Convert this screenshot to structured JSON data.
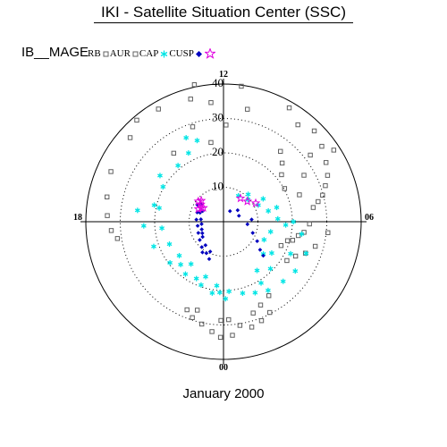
{
  "header": {
    "title": "IKI - Satellite Situation Center (SSC)",
    "plot_label": "IB__MAGE"
  },
  "footer": {
    "month": "January 2000"
  },
  "chart_data": {
    "type": "scatter",
    "projection": "polar-mlt",
    "title": "IKI - Satellite Situation Center (SSC)",
    "subtitle": "January 2000",
    "radial_axis": {
      "range": [
        0,
        40
      ],
      "tick_labels": [
        "10",
        "20",
        "30",
        "40"
      ],
      "tick_values": [
        10,
        20,
        30,
        40
      ],
      "grid": "dotted"
    },
    "angular_axis": {
      "tick_labels": [
        "00",
        "06",
        "12",
        "18"
      ],
      "tick_values": [
        0,
        6,
        12,
        18
      ]
    },
    "legend": {
      "placement": "top-left",
      "entries": [
        {
          "label": "RB",
          "marker": "open-square",
          "color": "#606060"
        },
        {
          "label": "AUR",
          "marker": "open-square",
          "color": "#606060"
        },
        {
          "label": "CAP",
          "marker": "asterisk",
          "color": "#00e5e5"
        },
        {
          "label": "CUSP",
          "marker": "filled-diamond",
          "color": "#0000c0"
        },
        {
          "label": "",
          "marker": "open-star",
          "color": "#e000e0"
        }
      ]
    },
    "series": [
      {
        "name": "RB",
        "marker": "open-square",
        "color": "#606060",
        "points": [
          [
            40.7,
            12.8
          ],
          [
            39.7,
            11.5
          ],
          [
            38.2,
            10.0
          ],
          [
            38.8,
            14.7
          ],
          [
            36.5,
            15.2
          ],
          [
            35.8,
            16.4
          ],
          [
            34.6,
            17.2
          ],
          [
            33.8,
            17.8
          ],
          [
            37.3,
            9.0
          ],
          [
            36.0,
            8.5
          ],
          [
            34.4,
            8.0
          ],
          [
            33.1,
            7.6
          ],
          [
            31.4,
            7.3
          ],
          [
            29.8,
            7.0
          ],
          [
            28.1,
            6.8
          ],
          [
            26.4,
            6.6
          ],
          [
            25.0,
            5.9
          ],
          [
            23.6,
            5.5
          ],
          [
            22.1,
            5.3
          ],
          [
            20.8,
            5.0
          ],
          [
            19.4,
            4.9
          ],
          [
            18.1,
            4.5
          ],
          [
            26.3,
            9.4
          ],
          [
            24.1,
            9.0
          ],
          [
            21.7,
            8.6
          ],
          [
            20.2,
            7.9
          ],
          [
            38.2,
            8.2
          ],
          [
            30.5,
            5.6
          ],
          [
            27.6,
            5.0
          ],
          [
            25.5,
            4.6
          ],
          [
            23.2,
            4.3
          ],
          [
            21.6,
            3.9
          ],
          [
            37.8,
            14.0
          ],
          [
            36.9,
            13.0
          ],
          [
            29.0,
            13.2
          ],
          [
            28.1,
            11.9
          ],
          [
            24.6,
            14.4
          ],
          [
            23.3,
            12.6
          ],
          [
            32.7,
            18.3
          ],
          [
            31.2,
            18.6
          ],
          [
            33.1,
            0.3
          ],
          [
            31.7,
            1.0
          ],
          [
            30.8,
            1.4
          ],
          [
            29.6,
            1.8
          ],
          [
            32.1,
            23.6
          ],
          [
            30.4,
            23.2
          ],
          [
            29.3,
            22.8
          ],
          [
            27.7,
            22.5
          ],
          [
            33.6,
            23.9
          ],
          [
            30.5,
            0.6
          ],
          [
            28.7,
            23.9
          ],
          [
            27.9,
            1.2
          ],
          [
            26.5,
            1.6
          ],
          [
            25.2,
            2.1
          ],
          [
            26.8,
            22.9
          ],
          [
            28.5,
            0.2
          ],
          [
            34.8,
            12.4
          ],
          [
            33.4,
            11.2
          ],
          [
            35.5,
            9.5
          ],
          [
            31.8,
            8.5
          ],
          [
            27.0,
            8.0
          ],
          [
            23.4,
            7.3
          ]
        ]
      },
      {
        "name": "CAP",
        "marker": "asterisk",
        "color": "#00e5e5",
        "points": [
          [
            26.7,
            13.6
          ],
          [
            24.8,
            13.2
          ],
          [
            22.4,
            13.8
          ],
          [
            21.0,
            14.6
          ],
          [
            20.3,
            16.0
          ],
          [
            19.1,
            17.2
          ],
          [
            18.0,
            18.4
          ],
          [
            17.0,
            19.5
          ],
          [
            16.2,
            20.5
          ],
          [
            15.5,
            21.5
          ],
          [
            16.8,
            22.8
          ],
          [
            18.7,
            23.6
          ],
          [
            20.3,
            0.3
          ],
          [
            21.5,
            1.0
          ],
          [
            22.6,
            1.6
          ],
          [
            23.8,
            2.2
          ],
          [
            24.5,
            3.0
          ],
          [
            25.3,
            3.7
          ],
          [
            25.7,
            4.6
          ],
          [
            25.2,
            17.5
          ],
          [
            23.2,
            18.2
          ],
          [
            21.5,
            19.3
          ],
          [
            19.6,
            20.5
          ],
          [
            18.8,
            21.6
          ],
          [
            19.5,
            22.7
          ],
          [
            21.0,
            23.4
          ],
          [
            22.4,
            0.1
          ],
          [
            22.8,
            15.6
          ],
          [
            20.7,
            17.1
          ],
          [
            17.6,
            21.0
          ],
          [
            18.3,
            22.3
          ],
          [
            20.6,
            23.8
          ],
          [
            18.1,
            5.8
          ],
          [
            15.8,
            6.2
          ],
          [
            13.4,
            6.9
          ],
          [
            11.2,
            7.7
          ],
          [
            9.6,
            8.8
          ],
          [
            8.7,
            10.0
          ],
          [
            10.7,
            9.2
          ],
          [
            13.3,
            8.0
          ],
          [
            16.0,
            7.0
          ],
          [
            20.3,
            6.0
          ],
          [
            23.0,
            5.4
          ],
          [
            21.6,
            4.3
          ],
          [
            19.3,
            3.0
          ],
          [
            17.2,
            2.3
          ],
          [
            20.9,
            2.1
          ],
          [
            14.9,
            3.4
          ],
          [
            16.7,
            3.8
          ],
          [
            12.9,
            4.4
          ],
          [
            14.0,
            5.2
          ]
        ]
      },
      {
        "name": "CUSP",
        "marker": "filled-diamond",
        "color": "#0000c0",
        "points": [
          [
            8.2,
            15.5
          ],
          [
            7.3,
            16.6
          ],
          [
            6.6,
            17.6
          ],
          [
            6.4,
            18.4
          ],
          [
            6.7,
            19.3
          ],
          [
            7.5,
            20.4
          ],
          [
            8.6,
            21.5
          ],
          [
            9.5,
            22.4
          ],
          [
            9.1,
            15.8
          ],
          [
            8.1,
            16.7
          ],
          [
            7.9,
            17.7
          ],
          [
            7.6,
            18.6
          ],
          [
            8.0,
            19.6
          ],
          [
            8.7,
            20.5
          ],
          [
            9.7,
            21.3
          ],
          [
            10.4,
            22.1
          ],
          [
            6.8,
            16.2
          ],
          [
            7.0,
            19.9
          ],
          [
            10.8,
            21.7
          ],
          [
            11.6,
            22.6
          ],
          [
            3.6,
            9.9
          ],
          [
            4.8,
            7.4
          ],
          [
            7.0,
            5.6
          ],
          [
            9.1,
            4.6
          ],
          [
            11.3,
            4.0
          ],
          [
            13.4,
            3.5
          ],
          [
            15.2,
            3.3
          ],
          [
            5.3,
            8.6
          ],
          [
            8.2,
            6.3
          ]
        ]
      },
      {
        "name": "",
        "marker": "open-star",
        "color": "#e000e0",
        "points": [
          [
            8.9,
            15.1
          ],
          [
            8.3,
            15.5
          ],
          [
            7.6,
            15.9
          ],
          [
            8.2,
            16.2
          ],
          [
            9.4,
            15.4
          ],
          [
            7.1,
            15.7
          ],
          [
            9.1,
            8.7
          ],
          [
            8.4,
            9.6
          ],
          [
            10.8,
            8.0
          ]
        ]
      }
    ]
  }
}
